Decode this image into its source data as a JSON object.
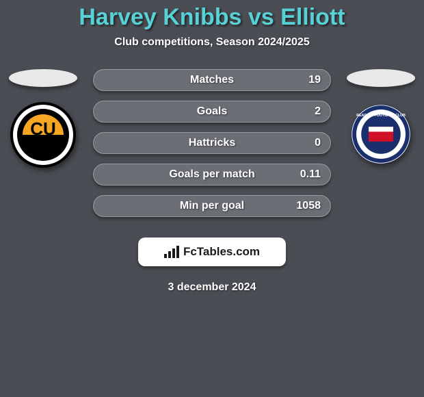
{
  "background_color": "#4a4d53",
  "header": {
    "title": "Harvey Knibbs vs Elliott",
    "title_color": "#57d0d6",
    "title_fontsize": 34,
    "subtitle": "Club competitions, Season 2024/2025",
    "subtitle_color": "#ffffff",
    "subtitle_fontsize": 16
  },
  "players": {
    "left": {
      "placeholder_color": "#e8e8e8",
      "club_name": "Cambridge United",
      "badge_primary": "#f5a623",
      "badge_secondary": "#000000",
      "badge_text": "CU"
    },
    "right": {
      "placeholder_color": "#e8e8e8",
      "club_name": "Reading",
      "badge_primary": "#1a2f6b",
      "badge_secondary": "#ffffff",
      "badge_accent": "#d01027"
    }
  },
  "stats": {
    "bar_background": "#6b6e74",
    "bar_border_color": "#9a9ca0",
    "label_color": "#ffffff",
    "label_fontsize": 16,
    "value_color": "#ffffff",
    "value_fontsize": 16,
    "rows": [
      {
        "label": "Matches",
        "value": "19"
      },
      {
        "label": "Goals",
        "value": "2"
      },
      {
        "label": "Hattricks",
        "value": "0"
      },
      {
        "label": "Goals per match",
        "value": "0.11"
      },
      {
        "label": "Min per goal",
        "value": "1058"
      }
    ]
  },
  "brand": {
    "text": "FcTables.com",
    "background": "#ffffff",
    "text_color": "#1a1a1a",
    "fontsize": 17
  },
  "date": {
    "text": "3 december 2024",
    "color": "#ffffff",
    "fontsize": 16
  }
}
